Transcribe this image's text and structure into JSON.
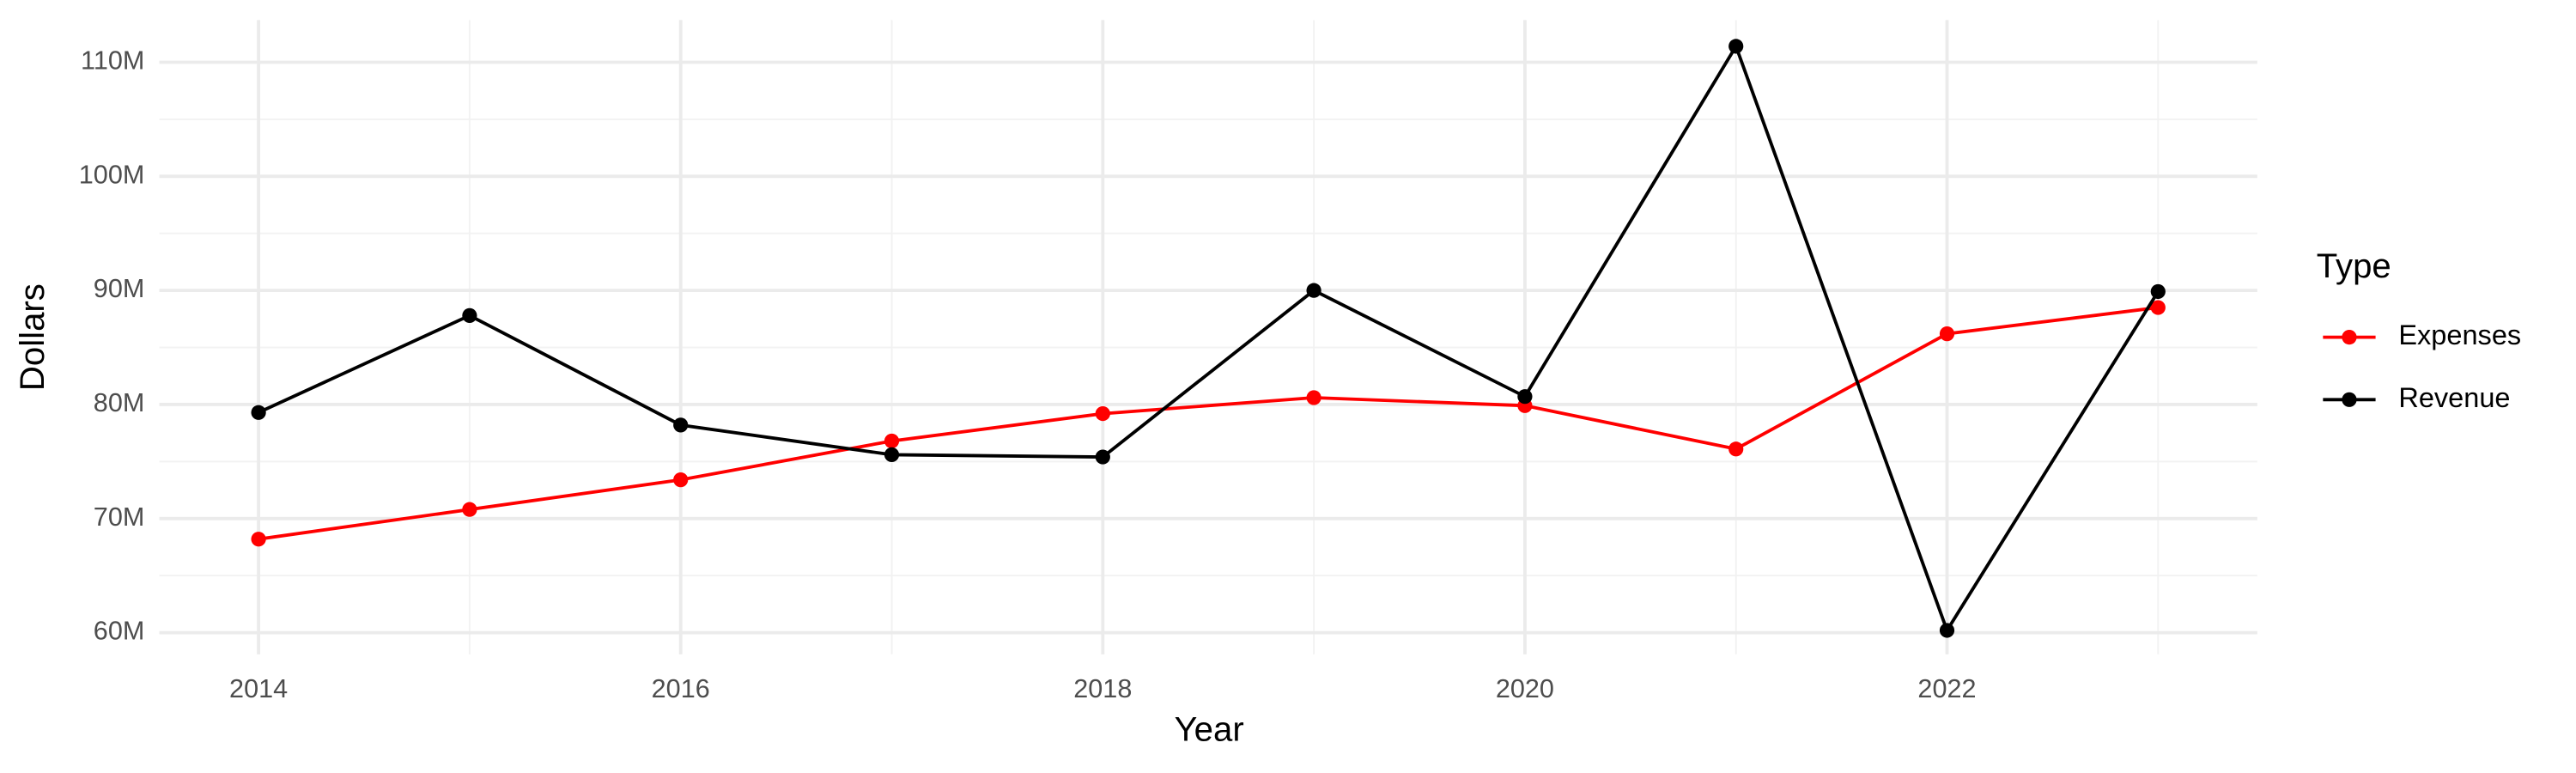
{
  "chart_data": {
    "type": "line",
    "x_label": "Year",
    "y_label": "Dollars",
    "legend_title": "Type",
    "legend_position": "right",
    "grid": true,
    "x": [
      2014,
      2015,
      2016,
      2017,
      2018,
      2019,
      2020,
      2021,
      2022,
      2023
    ],
    "series": [
      {
        "name": "Expenses",
        "color": "#ff0000",
        "values": [
          68200000,
          70800000,
          73400000,
          76800000,
          79200000,
          80600000,
          79900000,
          76100000,
          86200000,
          88500000
        ]
      },
      {
        "name": "Revenue",
        "color": "#000000",
        "values": [
          79300000,
          87800000,
          78200000,
          75600000,
          75400000,
          90000000,
          80700000,
          111400000,
          60200000,
          89900000
        ]
      }
    ],
    "xlim": [
      2013.53,
      2023.47
    ],
    "xticks": [
      2014,
      2016,
      2018,
      2020,
      2022
    ],
    "ylim": [
      58100000,
      113700000
    ],
    "yticks": [
      {
        "value": 60000000,
        "label": "60M"
      },
      {
        "value": 70000000,
        "label": "70M"
      },
      {
        "value": 80000000,
        "label": "80M"
      },
      {
        "value": 90000000,
        "label": "90M"
      },
      {
        "value": 100000000,
        "label": "100M"
      },
      {
        "value": 110000000,
        "label": "110M"
      }
    ]
  }
}
